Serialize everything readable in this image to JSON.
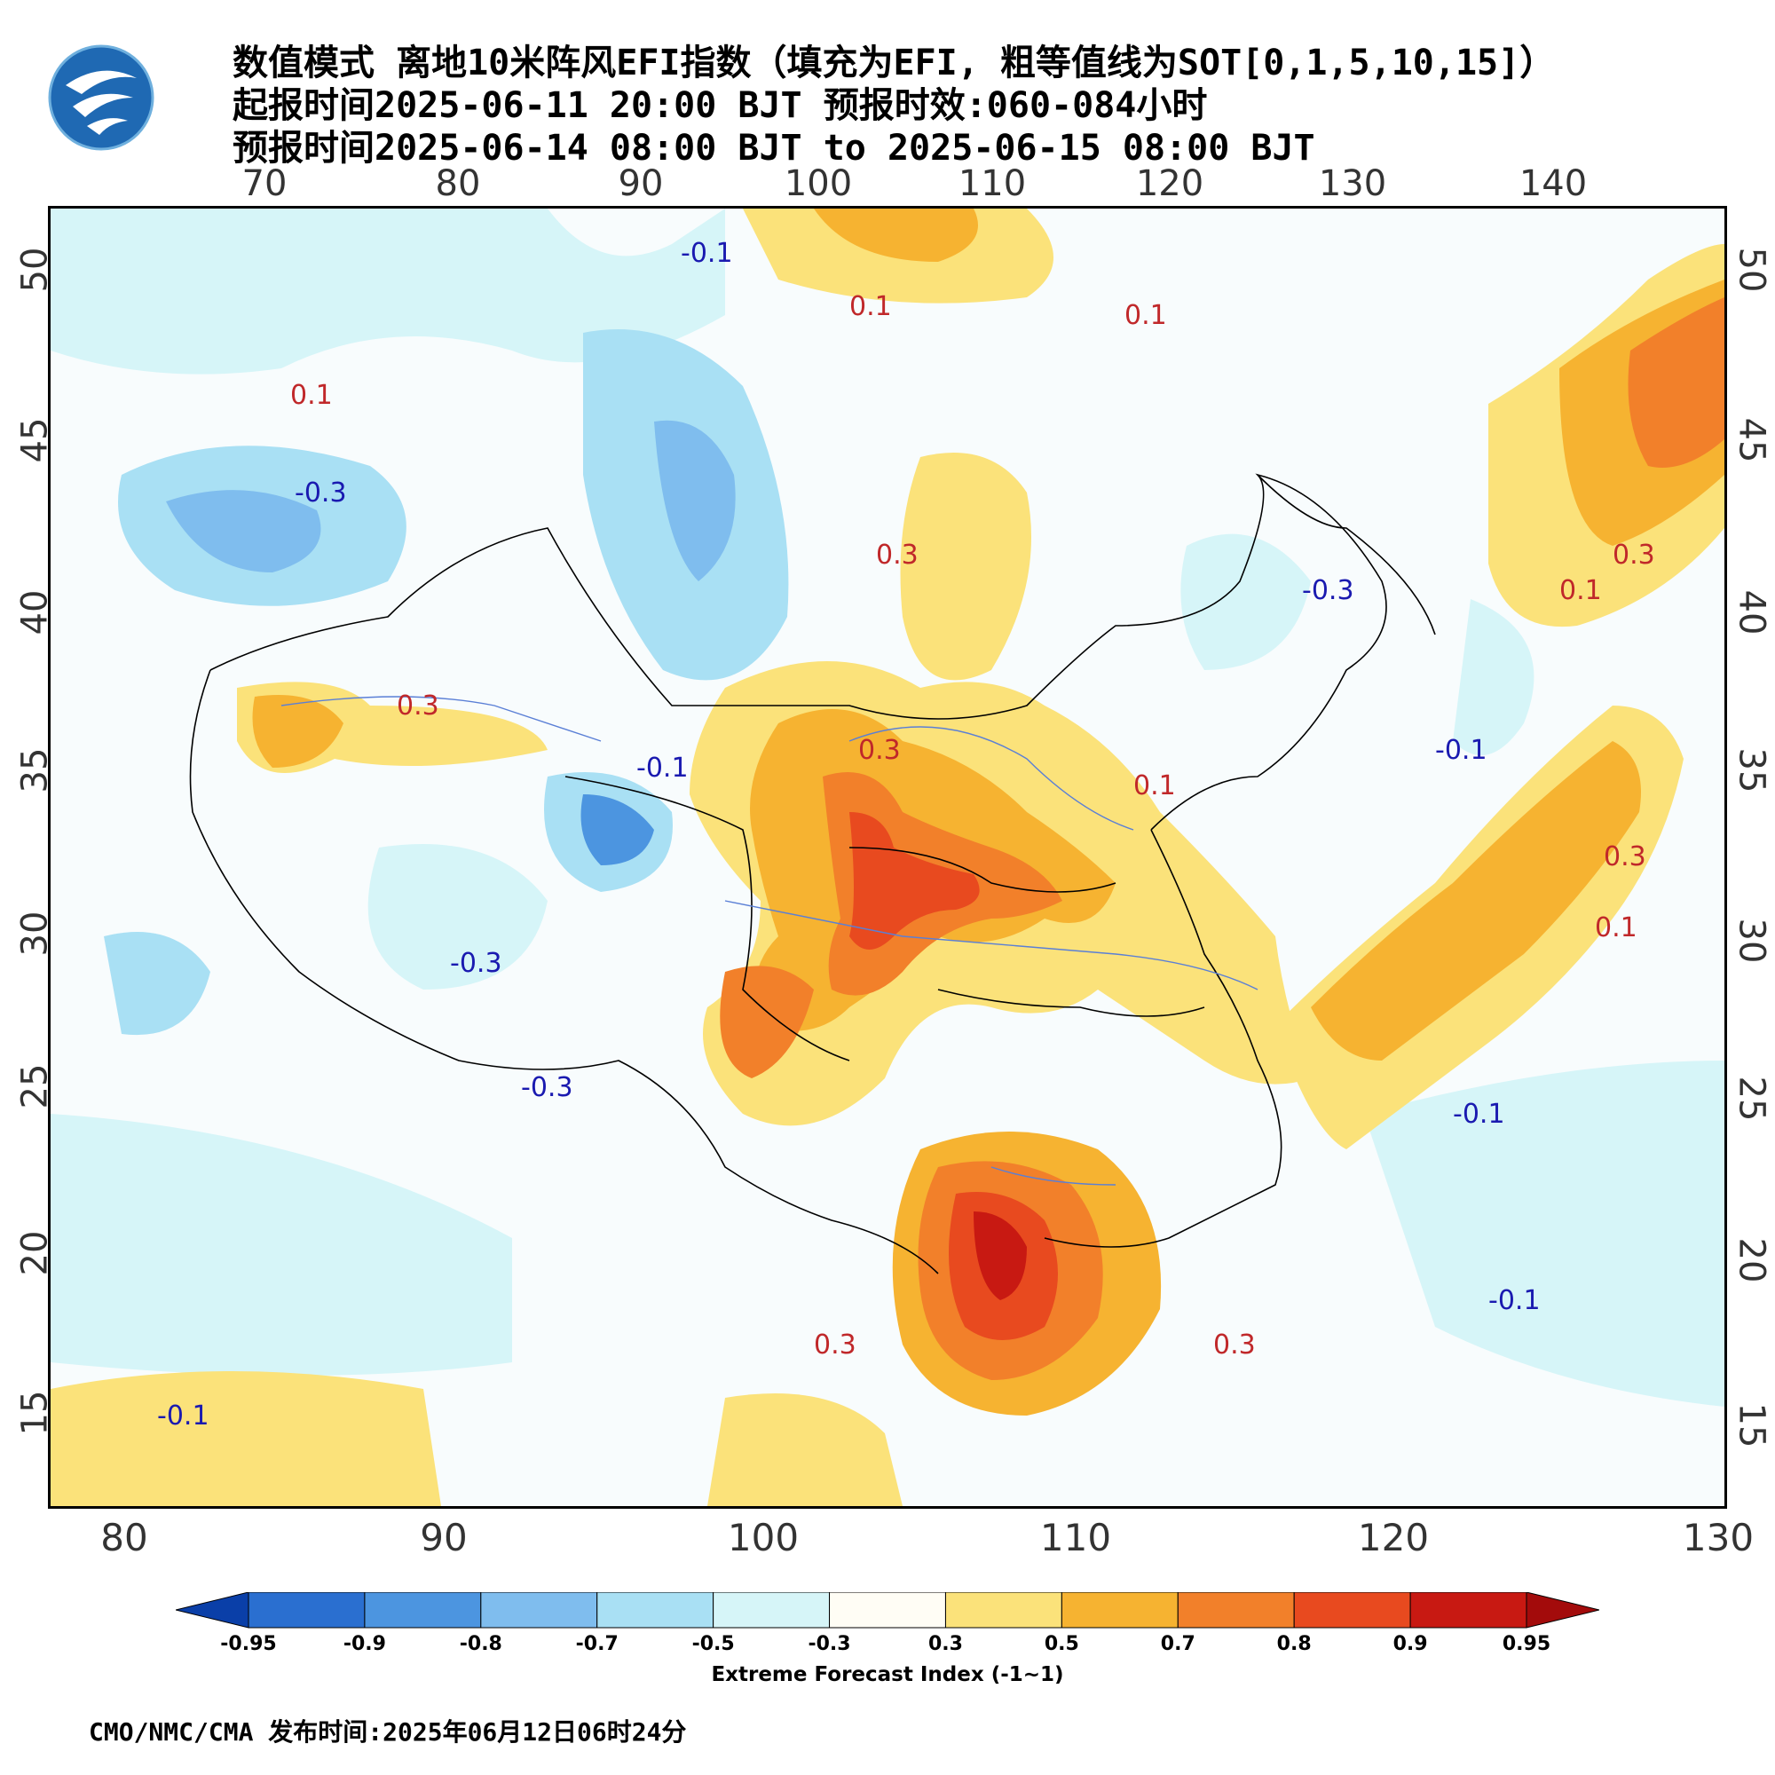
{
  "header": {
    "title_line1": "数值模式 离地10米阵风EFI指数（填充为EFI, 粗等值线为SOT[0,1,5,10,15]）",
    "title_line2": "起报时间2025-06-11 20:00 BJT 预报时效:060-084小时",
    "title_line3": "预报时间2025-06-14 08:00 BJT to 2025-06-15 08:00 BJT",
    "logo_icon": "cma-logo-icon"
  },
  "axes": {
    "lon_top": [
      "70",
      "80",
      "90",
      "100",
      "110",
      "120",
      "130",
      "140"
    ],
    "lon_bottom": [
      "80",
      "90",
      "100",
      "110",
      "120",
      "130"
    ],
    "lat_left": [
      "50",
      "45",
      "40",
      "35",
      "30",
      "25",
      "20",
      "15"
    ],
    "lat_right": [
      "50",
      "45",
      "40",
      "35",
      "30",
      "25",
      "20",
      "15"
    ]
  },
  "contour_labels": {
    "neg01": "-0.1",
    "neg03": "-0.3",
    "pos01": "0.1",
    "pos03": "0.3"
  },
  "legend": {
    "caption": "Extreme Forecast Index (-1~1)",
    "ticks": [
      "-0.95",
      "-0.9",
      "-0.8",
      "-0.7",
      "-0.5",
      "-0.3",
      "0.3",
      "0.5",
      "0.7",
      "0.8",
      "0.9",
      "0.95"
    ],
    "colors": [
      "#0a3fa8",
      "#2a6fd0",
      "#4c95e0",
      "#7fbdee",
      "#a9e0f4",
      "#d6f5f8",
      "#fffdf5",
      "#fbe27a",
      "#f6b331",
      "#f2802a",
      "#e84a1f",
      "#c81912",
      "#a30b0b"
    ]
  },
  "footer": {
    "text": "CMO/NMC/CMA 发布时间:2025年06月12日06时24分"
  },
  "colors": {
    "efi_blue_light": "#a9e0f4",
    "efi_blue_mid": "#7fbdee",
    "efi_blue_dark": "#2a6fd0",
    "efi_yellow": "#fbe27a",
    "efi_orange": "#f6b331",
    "efi_orange_deep": "#f2802a",
    "efi_red": "#e84a1f",
    "efi_red_dark": "#c81912"
  }
}
